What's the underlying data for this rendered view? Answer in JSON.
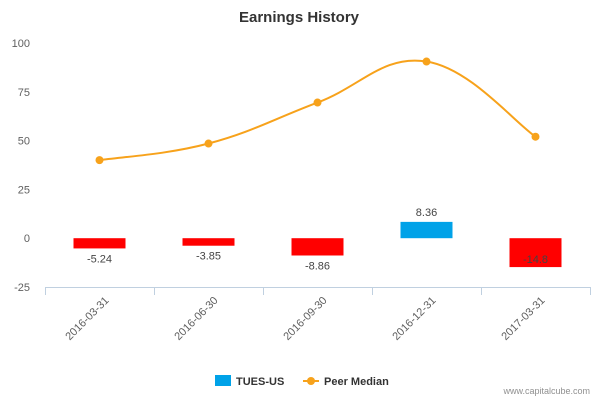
{
  "chart_data": {
    "type": "bar",
    "title": "Earnings History",
    "categories": [
      "2016-03-31",
      "2016-06-30",
      "2016-09-30",
      "2016-12-31",
      "2017-03-31"
    ],
    "series": [
      {
        "name": "TUES-US",
        "type": "bar",
        "values": [
          -5.24,
          -3.85,
          -8.86,
          8.36,
          -14.8
        ],
        "labels": [
          "-5.24",
          "-3.85",
          "-8.86",
          "8.36",
          "-14.8"
        ],
        "positive_color": "#00a2e8",
        "negative_color": "#ff0000"
      },
      {
        "name": "Peer Median",
        "type": "line",
        "values": [
          40,
          48.5,
          69.5,
          90.5,
          52
        ],
        "color": "#f7a21b"
      }
    ],
    "ylim": [
      -25,
      100
    ],
    "yticks": [
      -25,
      0,
      25,
      50,
      75,
      100
    ],
    "grid": false,
    "legend": "bottom-center"
  },
  "credit": "www.capitalcube.com"
}
